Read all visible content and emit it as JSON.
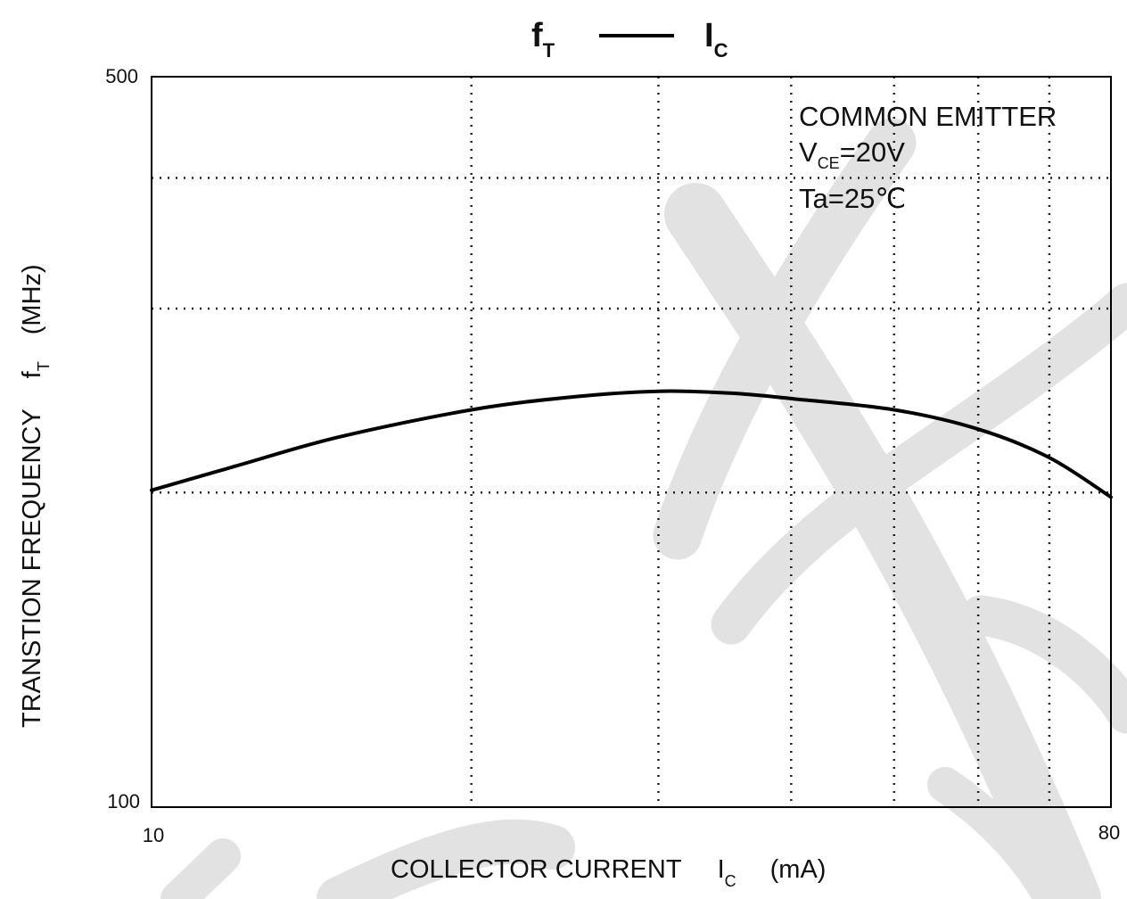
{
  "chart_data": {
    "type": "line",
    "title": {
      "main": "f",
      "main_sub": "T",
      "sep": "——",
      "right": "I",
      "right_sub": "C"
    },
    "xaxis": {
      "scale": "log",
      "range": [
        10,
        80
      ],
      "tick_labels": [
        "10",
        "80"
      ],
      "gridlines": [
        20,
        30,
        40,
        50,
        60,
        70
      ],
      "label": {
        "pre": "COLLECTOR CURRENT",
        "sym": "I",
        "sub": "C",
        "unit": "(mA)"
      }
    },
    "yaxis": {
      "scale": "log",
      "range": [
        100,
        500
      ],
      "tick_labels": [
        "100",
        "500"
      ],
      "gridlines": [
        200,
        300,
        400
      ],
      "label": {
        "pre": "TRANSTION FREQUENCY",
        "sym": "f",
        "sub": "T",
        "unit": "(MHz)"
      }
    },
    "grid": true,
    "annotation": {
      "line1": "COMMON EMITTER",
      "line2_sym": "V",
      "line2_sub": "CE",
      "line2_val": "=20V",
      "line3": "Ta=25℃"
    },
    "series": [
      {
        "color": "#000000",
        "x": [
          10,
          12,
          15,
          20,
          25,
          30,
          35,
          40,
          50,
          60,
          70,
          80
        ],
        "y": [
          201,
          212,
          226,
          240,
          247,
          250,
          249,
          246,
          240,
          230,
          216,
          198
        ]
      }
    ]
  }
}
